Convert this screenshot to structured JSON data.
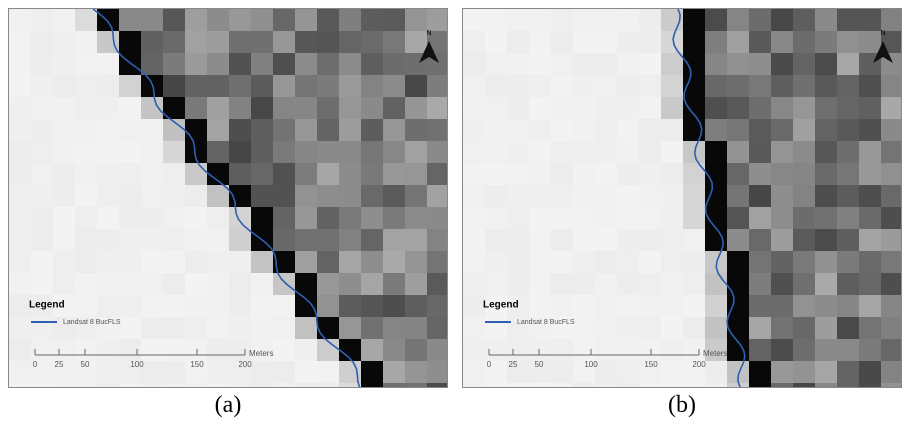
{
  "panels": [
    {
      "caption": "(a)",
      "north": "N",
      "legend": {
        "title": "Legend",
        "item": "Landsat 8 BucFLS"
      },
      "scale": {
        "labels": [
          "0",
          "25",
          "50",
          "100",
          "150",
          "200"
        ],
        "unit": "Meters"
      }
    },
    {
      "caption": "(b)",
      "north": "N",
      "legend": {
        "title": "Legend",
        "item": "Landsat 8 BucFLS"
      },
      "scale": {
        "labels": [
          "0",
          "25",
          "50",
          "100",
          "150",
          "200"
        ],
        "unit": "Meters"
      }
    }
  ]
}
